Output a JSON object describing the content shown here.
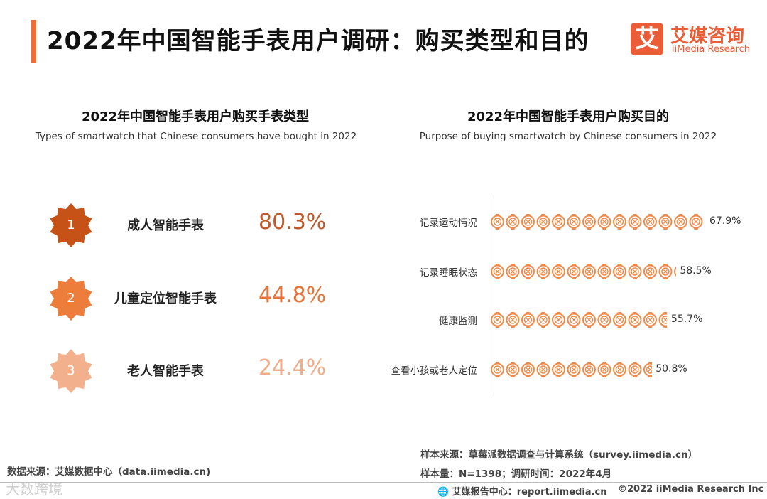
{
  "header": {
    "title": "2022年中国智能手表用户调研：购买类型和目的",
    "logo_glyph": "艾",
    "logo_cn": "艾媒咨询",
    "logo_en": "iiMedia Research",
    "accent": "#f06c35"
  },
  "chart_data": [
    {
      "type": "table",
      "title": "2022年中国智能手表用户购买手表类型",
      "subtitle": "Types of smartwatch that Chinese consumers have bought in 2022",
      "rows": [
        {
          "rank": "1",
          "label": "成人智能手表",
          "value": 80.3,
          "display": "80.3%",
          "color": "#c75218",
          "text_color": "#c0592a"
        },
        {
          "rank": "2",
          "label": "儿童定位智能手表",
          "value": 44.8,
          "display": "44.8%",
          "color": "#ed7d3a",
          "text_color": "#e5753a"
        },
        {
          "rank": "3",
          "label": "老人智能手表",
          "value": 24.4,
          "display": "24.4%",
          "color": "#f3b08d",
          "text_color": "#f0ad88"
        }
      ]
    },
    {
      "type": "bar",
      "title": "2022年中国智能手表用户购买目的",
      "subtitle": "Purpose of buying smartwatch by Chinese consumers in 2022",
      "unit": "%",
      "categories": [
        "记录运动情况",
        "记录睡眠状态",
        "健康监测",
        "查看小孩或老人定位"
      ],
      "values": [
        67.9,
        58.5,
        55.7,
        50.8
      ],
      "labels": [
        "67.9%",
        "58.5%",
        "55.7%",
        "50.8%"
      ],
      "color": "#f08a4b"
    }
  ],
  "notes": {
    "sample_source": "样本来源：草莓派数据调查与计算系统（survey.iimedia.cn）",
    "sample_size": "样本量：N=1398；调研时间：2022年4月",
    "data_source": "数据来源：艾媒数据中心（data.iimedia.cn)"
  },
  "footer": {
    "report_center": "艾媒报告中心：report.iimedia.cn",
    "copyright": "©2022  iiMedia Research Inc",
    "watermark": "大数跨境"
  }
}
